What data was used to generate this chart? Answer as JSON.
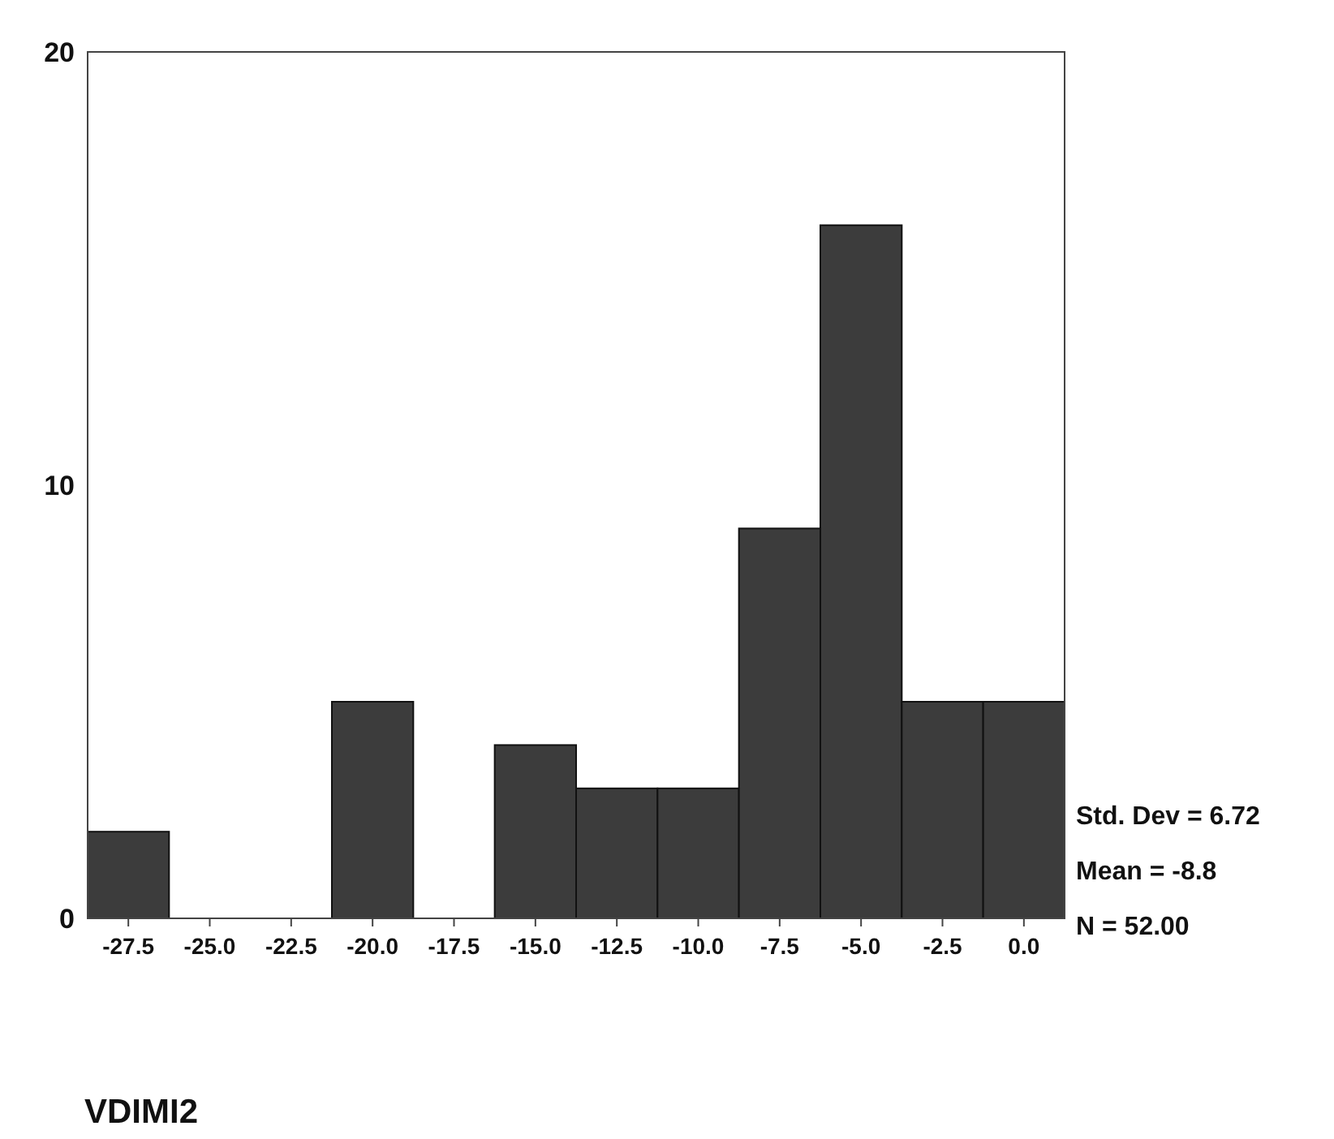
{
  "chart_data": {
    "type": "histogram",
    "xlabel": "VDIMI2",
    "bins": [
      -28.75,
      -26.25,
      -23.75,
      -21.25,
      -18.75,
      -16.25,
      -13.75,
      -11.25,
      -8.75,
      -6.25,
      -3.75,
      -1.25,
      1.25
    ],
    "values": [
      2,
      0,
      0,
      5,
      0,
      4,
      3,
      3,
      9,
      16,
      5,
      5
    ],
    "color": "#3c3c3c",
    "xlim": [
      -28.75,
      1.25
    ],
    "xticks": [
      {
        "value": -27.5,
        "label": "-27.5"
      },
      {
        "value": -25,
        "label": "-25.0"
      },
      {
        "value": -22.5,
        "label": "-22.5"
      },
      {
        "value": -20,
        "label": "-20.0"
      },
      {
        "value": -17.5,
        "label": "-17.5"
      },
      {
        "value": -15,
        "label": "-15.0"
      },
      {
        "value": -12.5,
        "label": "-12.5"
      },
      {
        "value": -10,
        "label": "-10.0"
      },
      {
        "value": -7.5,
        "label": "-7.5"
      },
      {
        "value": -5,
        "label": "-5.0"
      },
      {
        "value": -2.5,
        "label": "-2.5"
      },
      {
        "value": 0,
        "label": "0.0"
      }
    ],
    "ylim": [
      0,
      20
    ],
    "yticks": [
      0,
      10,
      20
    ],
    "annotations": [
      "Std. Dev = 6.72",
      "Mean = -8.8",
      "N = 52.00"
    ]
  }
}
